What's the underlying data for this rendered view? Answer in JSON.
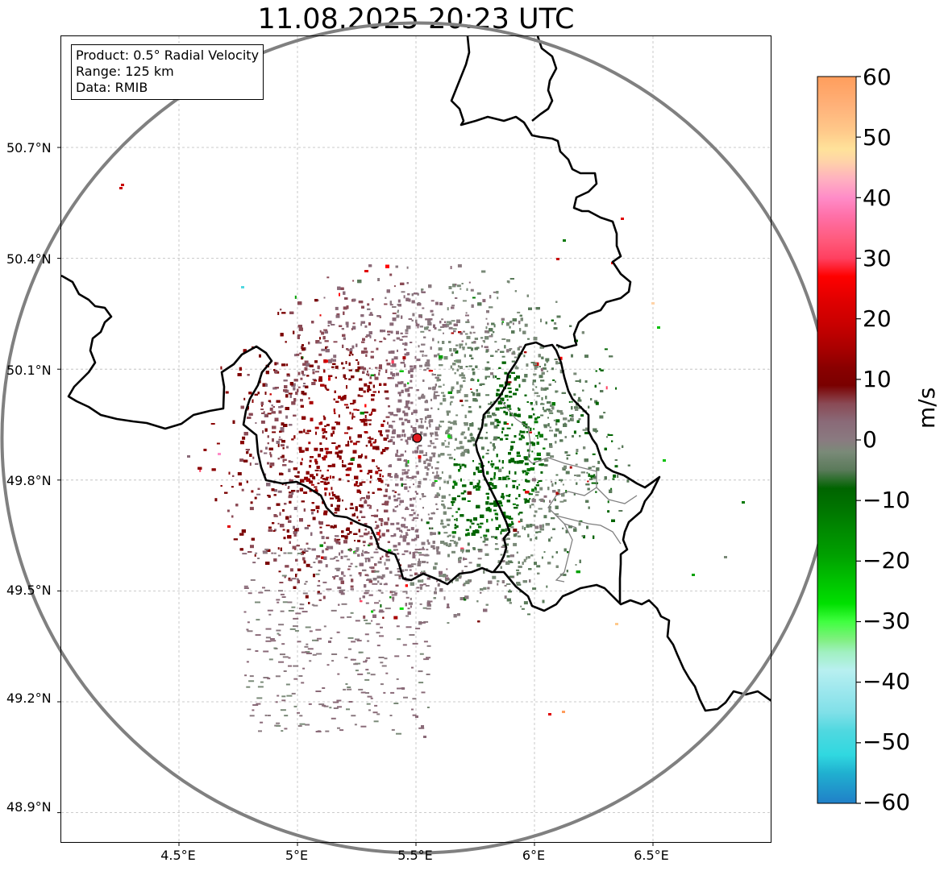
{
  "title": "11.08.2025 20:23 UTC",
  "info": {
    "product": "Product: 0.5° Radial Velocity",
    "range": "Range: 125 km",
    "data": "Data: RMIB"
  },
  "axes": {
    "lat_labels": [
      "50.7°N",
      "50.4°N",
      "50.1°N",
      "49.8°N",
      "49.5°N",
      "49.2°N",
      "48.9°N"
    ],
    "lon_labels": [
      "4.5°E",
      "5°E",
      "5.5°E",
      "6°E",
      "6.5°E"
    ],
    "lon_range": [
      4.0,
      7.0
    ],
    "lat_range": [
      48.8,
      51.0
    ]
  },
  "radar": {
    "site_lon": 5.505,
    "site_lat": 49.914,
    "range_km": 125,
    "site_marker_color": "#e0191e",
    "range_ring_color": "#808080"
  },
  "colorbar": {
    "unit": "m/s",
    "ticks": [
      "60",
      "50",
      "40",
      "30",
      "20",
      "10",
      "0",
      "−10",
      "−20",
      "−30",
      "−40",
      "−50",
      "−60"
    ],
    "min": -60,
    "max": 60,
    "stops": [
      [
        "#ff9d5c",
        60
      ],
      [
        "#ffb27a",
        55
      ],
      [
        "#ffc98a",
        51
      ],
      [
        "#ffe29a",
        48
      ],
      [
        "#ffd3a8",
        46
      ],
      [
        "#ffb0c0",
        43
      ],
      [
        "#ff8cc8",
        40
      ],
      [
        "#ff70a8",
        37
      ],
      [
        "#ff5a7c",
        33
      ],
      [
        "#ff4060",
        30
      ],
      [
        "#ff0000",
        27
      ],
      [
        "#e00000",
        23
      ],
      [
        "#c80000",
        19
      ],
      [
        "#a80000",
        15
      ],
      [
        "#8a0000",
        12
      ],
      [
        "#7a0000",
        9
      ],
      [
        "#8a4a55",
        6
      ],
      [
        "#8a6a78",
        3
      ],
      [
        "#8a7a80",
        0
      ],
      [
        "#7a8a78",
        -2
      ],
      [
        "#5a7a5a",
        -5
      ],
      [
        "#006400",
        -8
      ],
      [
        "#007800",
        -12
      ],
      [
        "#008a00",
        -15
      ],
      [
        "#00a000",
        -19
      ],
      [
        "#00c000",
        -23
      ],
      [
        "#00e000",
        -27
      ],
      [
        "#40ff40",
        -30
      ],
      [
        "#80f080",
        -33
      ],
      [
        "#a0f0c0",
        -35
      ],
      [
        "#b8f0f0",
        -38
      ],
      [
        "#a0e8ee",
        -41
      ],
      [
        "#80e0e8",
        -45
      ],
      [
        "#50d8e0",
        -48
      ],
      [
        "#30d8e0",
        -52
      ],
      [
        "#20b0d0",
        -55
      ],
      [
        "#2080c8",
        -60
      ]
    ]
  },
  "legend_colors": {
    "outbound": "#7a0000",
    "inbound": "#006400",
    "near_zero": "#8a7a80"
  }
}
